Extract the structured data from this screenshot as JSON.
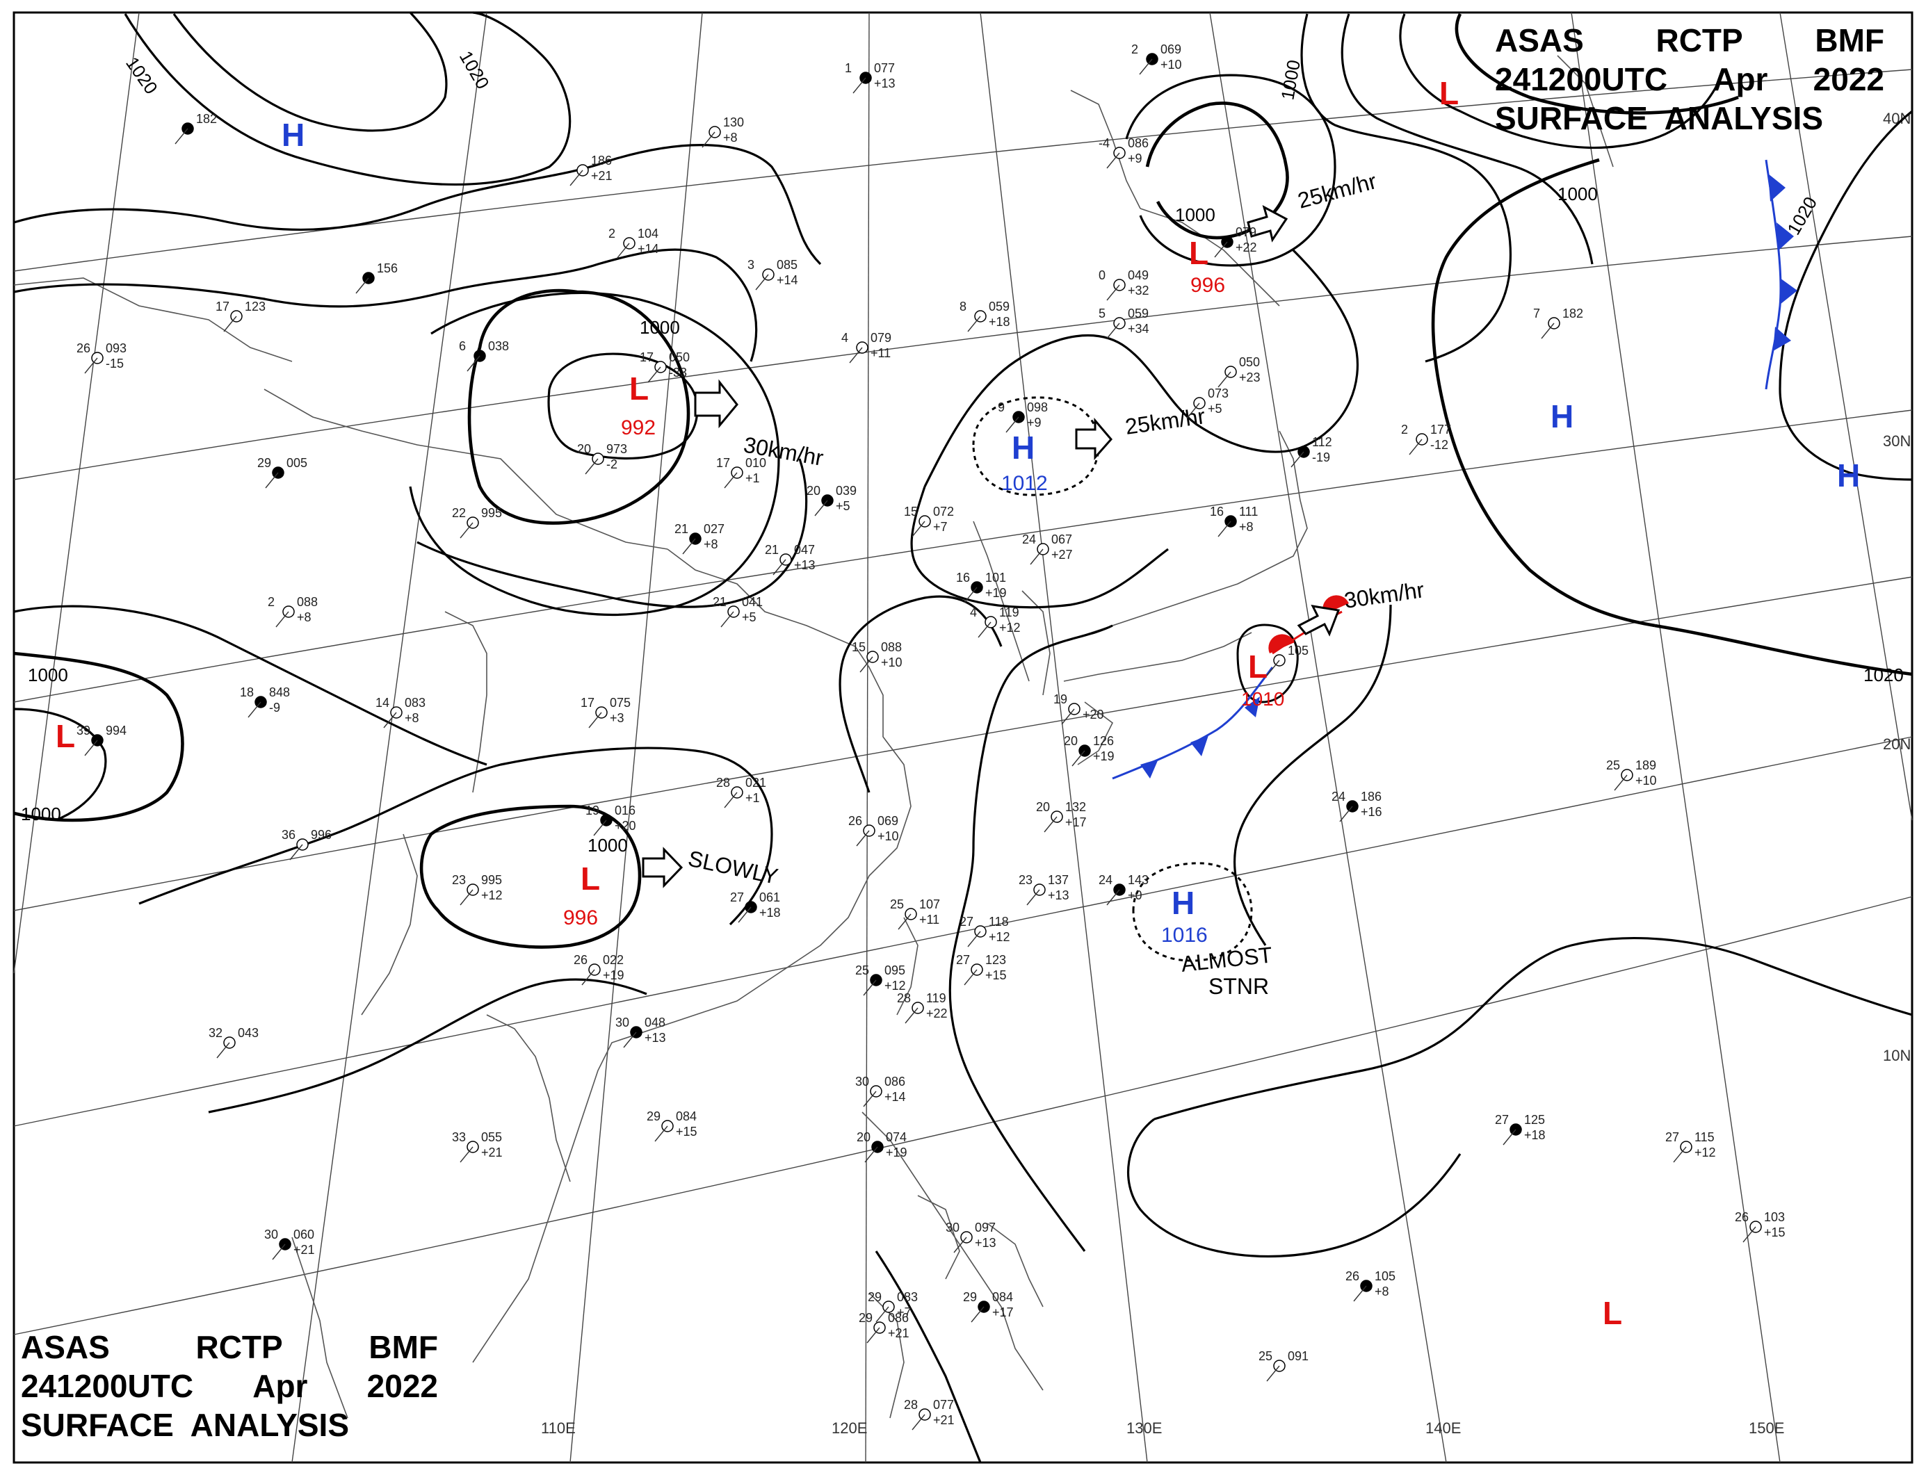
{
  "header": {
    "line1": [
      "ASAS",
      "RCTP",
      "BMF"
    ],
    "line2": [
      "241200UTC",
      "Apr",
      "2022"
    ],
    "line3": "SURFACE  ANALYSIS"
  },
  "footer": {
    "line1": [
      "ASAS",
      "RCTP",
      "BMF"
    ],
    "line2": [
      "241200UTC",
      "Apr",
      "2022"
    ],
    "line3": "SURFACE  ANALYSIS"
  },
  "graticule": {
    "longitudes": [
      "110E",
      "120E",
      "130E",
      "140E",
      "150E"
    ],
    "latitudes": [
      "40N",
      "30N",
      "20N",
      "10N"
    ]
  },
  "isobar_labels": [
    "1020",
    "1020",
    "1020",
    "1020",
    "1000",
    "1000",
    "1000",
    "1000",
    "1000",
    "1000",
    "1000"
  ],
  "pressure_systems": [
    {
      "type": "H",
      "value": "",
      "color": "#1f3fd0"
    },
    {
      "type": "L",
      "value": "992",
      "color": "#e01010"
    },
    {
      "type": "L",
      "value": "996",
      "color": "#e01010"
    },
    {
      "type": "H",
      "value": "1012",
      "color": "#1f3fd0"
    },
    {
      "type": "L",
      "value": "996",
      "color": "#e01010"
    },
    {
      "type": "L",
      "value": "",
      "color": "#e01010"
    },
    {
      "type": "H",
      "value": "",
      "color": "#1f3fd0"
    },
    {
      "type": "H",
      "value": "",
      "color": "#1f3fd0"
    },
    {
      "type": "L",
      "value": "",
      "color": "#e01010"
    },
    {
      "type": "L",
      "value": "1010",
      "color": "#e01010"
    },
    {
      "type": "H",
      "value": "1016",
      "color": "#1f3fd0"
    },
    {
      "type": "L",
      "value": "",
      "color": "#e01010"
    }
  ],
  "movements": [
    "30km/hr",
    "25km/hr",
    "25km/hr",
    "30km/hr",
    "SLOWLY",
    "ALMOST",
    "STNR"
  ],
  "stations": [
    {
      "temp": "1",
      "press": "077",
      "dp": "+13"
    },
    {
      "temp": "",
      "press": "130",
      "dp": "+8"
    },
    {
      "temp": "",
      "press": "186",
      "dp": "+21"
    },
    {
      "temp": "",
      "press": "182",
      "dp": ""
    },
    {
      "temp": "2",
      "press": "104",
      "dp": "+14"
    },
    {
      "temp": "3",
      "press": "085",
      "dp": "+14"
    },
    {
      "temp": "",
      "press": "156",
      "dp": ""
    },
    {
      "temp": "17",
      "press": "123",
      "dp": ""
    },
    {
      "temp": "26",
      "press": "093",
      "dp": "-15"
    },
    {
      "temp": "6",
      "press": "038",
      "dp": ""
    },
    {
      "temp": "17",
      "press": "050",
      "dp": "-33"
    },
    {
      "temp": "20",
      "press": "973",
      "dp": "-2"
    },
    {
      "temp": "29",
      "press": "005",
      "dp": ""
    },
    {
      "temp": "22",
      "press": "995",
      "dp": ""
    },
    {
      "temp": "17",
      "press": "010",
      "dp": "+1"
    },
    {
      "temp": "21",
      "press": "027",
      "dp": "+8"
    },
    {
      "temp": "21",
      "press": "047",
      "dp": "+13"
    },
    {
      "temp": "21",
      "press": "041",
      "dp": "+5"
    },
    {
      "temp": "20",
      "press": "039",
      "dp": "+5"
    },
    {
      "temp": "15",
      "press": "072",
      "dp": "+7"
    },
    {
      "temp": "2",
      "press": "088",
      "dp": "+8"
    },
    {
      "temp": "18",
      "press": "848",
      "dp": "-9"
    },
    {
      "temp": "14",
      "press": "083",
      "dp": "+8"
    },
    {
      "temp": "17",
      "press": "075",
      "dp": "+3"
    },
    {
      "temp": "39",
      "press": "994",
      "dp": ""
    },
    {
      "temp": "36",
      "press": "996",
      "dp": ""
    },
    {
      "temp": "28",
      "press": "021",
      "dp": "+1"
    },
    {
      "temp": "19",
      "press": "016",
      "dp": "+20"
    },
    {
      "temp": "26",
      "press": "069",
      "dp": "+10"
    },
    {
      "temp": "23",
      "press": "995",
      "dp": "+12"
    },
    {
      "temp": "27",
      "press": "061",
      "dp": "+18"
    },
    {
      "temp": "26",
      "press": "022",
      "dp": "+19"
    },
    {
      "temp": "32",
      "press": "043",
      "dp": ""
    },
    {
      "temp": "30",
      "press": "048",
      "dp": "+13"
    },
    {
      "temp": "29",
      "press": "084",
      "dp": "+15"
    },
    {
      "temp": "33",
      "press": "055",
      "dp": "+21"
    },
    {
      "temp": "30",
      "press": "060",
      "dp": "+21"
    },
    {
      "temp": "4",
      "press": "079",
      "dp": "+11"
    },
    {
      "temp": "8",
      "press": "059",
      "dp": "+18"
    },
    {
      "temp": "9",
      "press": "098",
      "dp": "+9"
    },
    {
      "temp": "15",
      "press": "088",
      "dp": "+10"
    },
    {
      "temp": "24",
      "press": "067",
      "dp": "+27"
    },
    {
      "temp": "16",
      "press": "101",
      "dp": "+19"
    },
    {
      "temp": "4",
      "press": "119",
      "dp": "+12"
    },
    {
      "temp": "-4",
      "press": "086",
      "dp": "+9"
    },
    {
      "temp": "2",
      "press": "069",
      "dp": "+10"
    },
    {
      "temp": "0",
      "press": "049",
      "dp": "+32"
    },
    {
      "temp": "5",
      "press": "059",
      "dp": "+34"
    },
    {
      "temp": "",
      "press": "079",
      "dp": "+22"
    },
    {
      "temp": "",
      "press": "050",
      "dp": "+23"
    },
    {
      "temp": "",
      "press": "073",
      "dp": "+5"
    },
    {
      "temp": "",
      "press": "112",
      "dp": "-19"
    },
    {
      "temp": "2",
      "press": "177",
      "dp": "-12"
    },
    {
      "temp": "7",
      "press": "182",
      "dp": ""
    },
    {
      "temp": "16",
      "press": "111",
      "dp": "+8"
    },
    {
      "temp": "",
      "press": "105",
      "dp": ""
    },
    {
      "temp": "19",
      "press": "",
      "dp": "+20"
    },
    {
      "temp": "20",
      "press": "126",
      "dp": "+19"
    },
    {
      "temp": "20",
      "press": "132",
      "dp": "+17"
    },
    {
      "temp": "23",
      "press": "137",
      "dp": "+13"
    },
    {
      "temp": "24",
      "press": "143",
      "dp": "+0"
    },
    {
      "temp": "25",
      "press": "107",
      "dp": "+11"
    },
    {
      "temp": "27",
      "press": "118",
      "dp": "+12"
    },
    {
      "temp": "25",
      "press": "095",
      "dp": "+12"
    },
    {
      "temp": "27",
      "press": "123",
      "dp": "+15"
    },
    {
      "temp": "28",
      "press": "119",
      "dp": "+22"
    },
    {
      "temp": "24",
      "press": "186",
      "dp": "+16"
    },
    {
      "temp": "25",
      "press": "189",
      "dp": "+10"
    },
    {
      "temp": "30",
      "press": "086",
      "dp": "+14"
    },
    {
      "temp": "20",
      "press": "074",
      "dp": "+19"
    },
    {
      "temp": "30",
      "press": "097",
      "dp": "+13"
    },
    {
      "temp": "29",
      "press": "083",
      "dp": "+7"
    },
    {
      "temp": "29",
      "press": "084",
      "dp": "+17"
    },
    {
      "temp": "29",
      "press": "086",
      "dp": "+21"
    },
    {
      "temp": "28",
      "press": "077",
      "dp": "+21"
    },
    {
      "temp": "27",
      "press": "125",
      "dp": "+18"
    },
    {
      "temp": "27",
      "press": "115",
      "dp": "+12"
    },
    {
      "temp": "26",
      "press": "103",
      "dp": "+15"
    },
    {
      "temp": "26",
      "press": "105",
      "dp": "+8"
    },
    {
      "temp": "25",
      "press": "091",
      "dp": ""
    }
  ],
  "colors": {
    "isobar": "#000000",
    "high": "#1f3fd0",
    "low": "#e01010",
    "cold_front": "#1f3fd0",
    "warm_front": "#e01010",
    "geography": "#555555"
  }
}
